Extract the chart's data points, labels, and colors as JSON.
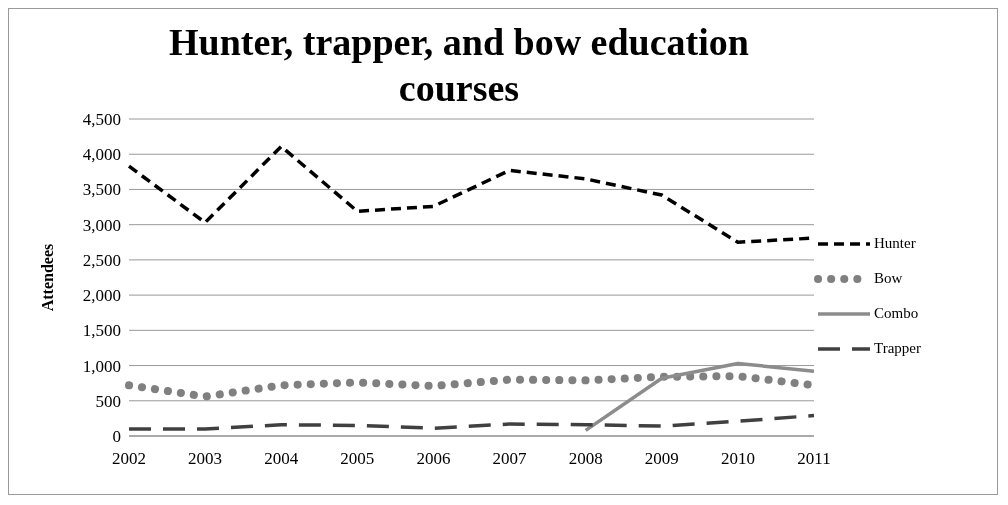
{
  "chart_data": {
    "type": "line",
    "title": "Hunter, trapper, and bow education courses",
    "ylabel": "Attendees",
    "categories": [
      "2002",
      "2003",
      "2004",
      "2005",
      "2006",
      "2007",
      "2008",
      "2009",
      "2010",
      "2011"
    ],
    "series": [
      {
        "name": "Hunter",
        "color": "#000000",
        "line_style": "dashed",
        "values": [
          3830,
          3030,
          4110,
          3190,
          3260,
          3770,
          3650,
          3420,
          2750,
          2810
        ]
      },
      {
        "name": "Bow",
        "color": "#808080",
        "line_style": "dotted",
        "values": [
          720,
          560,
          720,
          760,
          710,
          800,
          790,
          840,
          850,
          720
        ]
      },
      {
        "name": "Combo",
        "color": "#8c8c8c",
        "line_style": "solid",
        "values": [
          null,
          null,
          null,
          null,
          null,
          null,
          80,
          820,
          1030,
          920
        ]
      },
      {
        "name": "Trapper",
        "color": "#404040",
        "line_style": "dashed",
        "values": [
          100,
          100,
          160,
          150,
          110,
          170,
          160,
          140,
          210,
          290
        ]
      }
    ],
    "ylim": [
      0,
      4500
    ],
    "yticks": [
      0,
      500,
      {
        "value": 1000,
        "label": "1,000"
      },
      {
        "value": 1500,
        "label": "1,500"
      },
      {
        "value": 2000,
        "label": "2,000"
      },
      {
        "value": 2500,
        "label": "2,500"
      },
      {
        "value": 3000,
        "label": "3,000"
      },
      {
        "value": 3500,
        "label": "3,500"
      },
      {
        "value": 4000,
        "label": "4,000"
      },
      {
        "value": 4500,
        "label": "4,500"
      }
    ],
    "grid": "y",
    "legend": "right",
    "marker": "none"
  }
}
